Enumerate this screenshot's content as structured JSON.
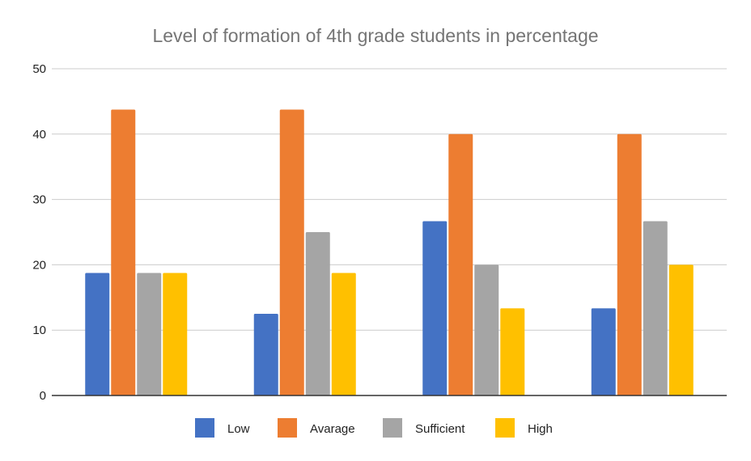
{
  "chart_data": {
    "type": "bar",
    "title": "Level of formation of 4th grade students in percentage",
    "xlabel": "",
    "ylabel": "",
    "categories": [
      "",
      "",
      "",
      ""
    ],
    "ylim": [
      0,
      50
    ],
    "yticks": [
      0,
      10,
      20,
      30,
      40,
      50
    ],
    "grid": true,
    "legend_position": "bottom",
    "series": [
      {
        "name": "Low",
        "color": "#4472c4",
        "values": [
          18.75,
          12.5,
          26.67,
          13.33
        ]
      },
      {
        "name": "Avarage",
        "color": "#ed7d31",
        "values": [
          43.75,
          43.75,
          40,
          40
        ]
      },
      {
        "name": "Sufficient",
        "color": "#a5a5a5",
        "values": [
          18.75,
          25,
          20,
          26.67
        ]
      },
      {
        "name": "High",
        "color": "#ffc000",
        "values": [
          18.75,
          18.75,
          13.33,
          20
        ]
      }
    ]
  }
}
